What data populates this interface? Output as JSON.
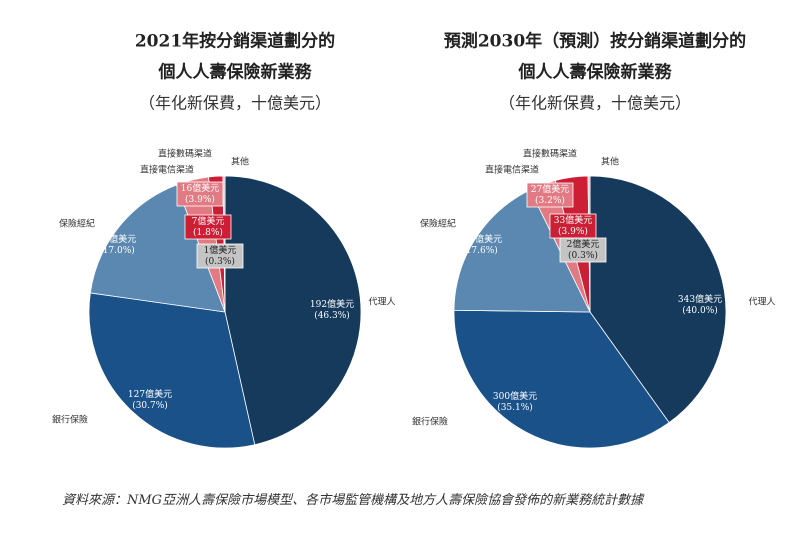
{
  "chart_data": [
    {
      "type": "pie",
      "title": [
        "2021年按分銷渠道劃分的",
        "個人人壽保險新業務"
      ],
      "subtitle": "（年化新保費，十億美元）",
      "categories": [
        "代理人",
        "銀行保險",
        "保險經紀",
        "直接電信渠道",
        "直接數碼渠道",
        "其他"
      ],
      "values": [
        192,
        127,
        70,
        16,
        7,
        1
      ],
      "value_labels": [
        "192億美元",
        "127億美元",
        "70億美元",
        "16億美元",
        "7億美元",
        "1億美元"
      ],
      "percent_labels": [
        "(46.3%)",
        "(30.7%)",
        "(17.0%)",
        "(3.9%)",
        "(1.8%)",
        "(0.3%)"
      ],
      "colors": [
        "#163a5c",
        "#1a5189",
        "#5a88b0",
        "#e27a84",
        "#cc1f36",
        "#c4c4c4"
      ]
    },
    {
      "type": "pie",
      "title": [
        "預測2030年（預測）按分銷渠道劃分的",
        "個人人壽保險新業務"
      ],
      "subtitle": "（年化新保費，十億美元）",
      "categories": [
        "代理人",
        "銀行保險",
        "保險經紀",
        "直接電信渠道",
        "直接數碼渠道",
        "其他"
      ],
      "values": [
        343,
        300,
        150,
        27,
        33,
        2
      ],
      "value_labels": [
        "343億美元",
        "300億美元",
        "150億美元",
        "27億美元",
        "33億美元",
        "2億美元"
      ],
      "percent_labels": [
        "(40.0%)",
        "(35.1%)",
        "(17.6%)",
        "(3.2%)",
        "(3.9%)",
        "(0.3%)"
      ],
      "colors": [
        "#163a5c",
        "#1a5189",
        "#5a88b0",
        "#e27a84",
        "#cc1f36",
        "#c4c4c4"
      ]
    }
  ],
  "source": "資料來源：NMG亞洲人壽保險市場模型、各市場監管機構及地方人壽保險協會發佈的新業務統計數據"
}
